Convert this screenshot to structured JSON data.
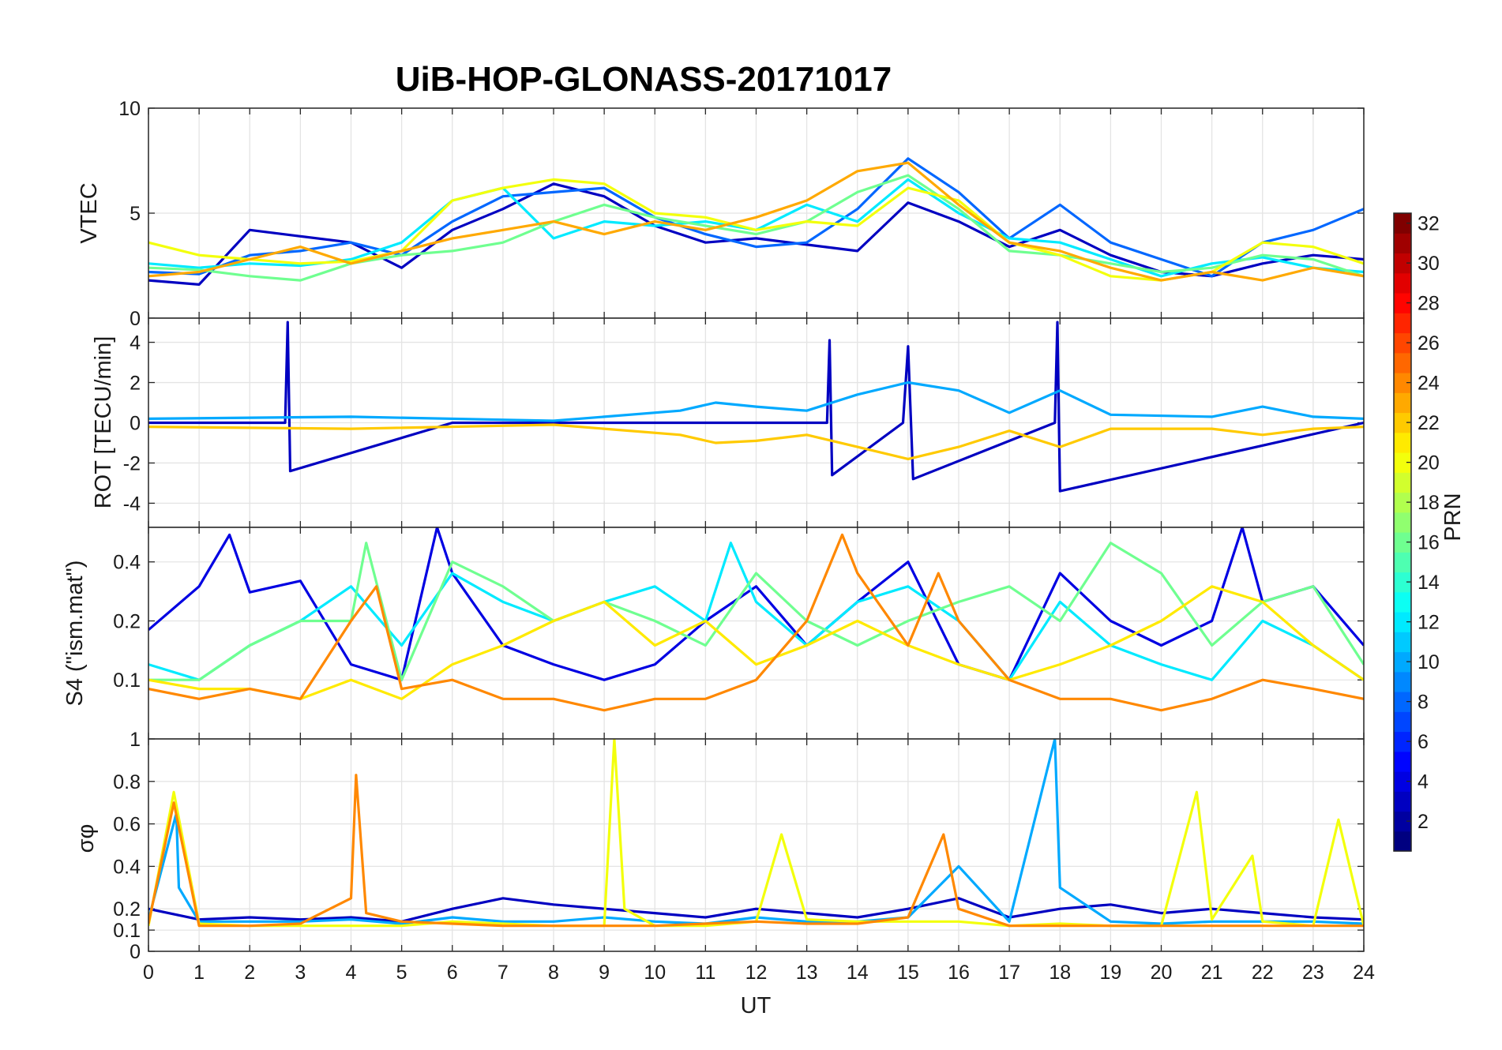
{
  "figure": {
    "title": "UiB-HOP-GLONASS-20171017",
    "xlabel": "UT"
  },
  "colorbar": {
    "label": "PRN",
    "ticks": [
      "2",
      "4",
      "6",
      "8",
      "10",
      "12",
      "14",
      "16",
      "18",
      "20",
      "22",
      "24",
      "26",
      "28",
      "30",
      "32"
    ],
    "range": [
      1,
      32
    ],
    "colormap": "jet"
  },
  "chart_data": [
    {
      "type": "line",
      "name": "VTEC",
      "ylabel": "VTEC",
      "x_range": [
        0,
        24
      ],
      "ylim": [
        0,
        10
      ],
      "yticks": [
        "0",
        "5",
        "10"
      ],
      "xticks": [
        "0",
        "1",
        "2",
        "3",
        "4",
        "5",
        "6",
        "7",
        "8",
        "9",
        "10",
        "11",
        "12",
        "13",
        "14",
        "15",
        "16",
        "17",
        "18",
        "19",
        "20",
        "21",
        "22",
        "23",
        "24"
      ],
      "grid": true,
      "series": [
        {
          "prn": 3,
          "x": [
            0,
            1,
            2,
            3,
            4,
            5,
            6,
            7,
            8,
            9,
            10,
            11,
            12,
            13,
            14,
            15,
            16,
            17,
            18,
            19,
            20,
            21,
            22,
            23,
            24
          ],
          "values": [
            1.8,
            1.6,
            4.2,
            3.9,
            3.6,
            2.4,
            4.2,
            5.2,
            6.4,
            5.8,
            4.4,
            3.6,
            3.8,
            3.5,
            3.2,
            5.5,
            4.6,
            3.4,
            4.2,
            3.0,
            2.2,
            2.0,
            2.6,
            3.0,
            2.8
          ]
        },
        {
          "prn": 8,
          "x": [
            0,
            1,
            2,
            3,
            4,
            5,
            6,
            7,
            8,
            9,
            10,
            11,
            12,
            13,
            14,
            15,
            16,
            17,
            18,
            19,
            20,
            21,
            22,
            23,
            24
          ],
          "values": [
            2.2,
            2.1,
            3.0,
            3.2,
            3.6,
            3.0,
            4.6,
            5.8,
            6.0,
            6.2,
            4.8,
            4.0,
            3.4,
            3.6,
            5.2,
            7.6,
            6.0,
            3.8,
            5.4,
            3.6,
            2.8,
            2.0,
            3.6,
            4.2,
            5.2
          ]
        },
        {
          "prn": 12,
          "x": [
            0,
            1,
            2,
            3,
            4,
            5,
            6,
            7,
            8,
            9,
            10,
            11,
            12,
            13,
            14,
            15,
            16,
            17,
            18,
            19,
            20,
            21,
            22,
            23,
            24
          ],
          "values": [
            2.6,
            2.4,
            2.6,
            2.5,
            2.8,
            3.6,
            5.6,
            6.2,
            3.8,
            4.6,
            4.4,
            4.6,
            4.2,
            5.4,
            4.6,
            6.6,
            5.0,
            3.8,
            3.6,
            2.8,
            2.0,
            2.6,
            2.9,
            2.4,
            2.2
          ]
        },
        {
          "prn": 16,
          "x": [
            0,
            1,
            2,
            3,
            4,
            5,
            6,
            7,
            8,
            9,
            10,
            11,
            12,
            13,
            14,
            15,
            16,
            17,
            18,
            19,
            20,
            21,
            22,
            23,
            24
          ],
          "values": [
            2.4,
            2.3,
            2.0,
            1.8,
            2.6,
            3.0,
            3.2,
            3.6,
            4.6,
            5.4,
            4.8,
            4.4,
            4.0,
            4.6,
            6.0,
            6.8,
            5.2,
            3.2,
            3.0,
            2.6,
            2.2,
            2.4,
            3.0,
            2.8,
            2.0
          ]
        },
        {
          "prn": 20,
          "x": [
            0,
            1,
            2,
            3,
            4,
            5,
            6,
            7,
            8,
            9,
            10,
            11,
            12,
            13,
            14,
            15,
            16,
            17,
            18,
            19,
            20,
            21,
            22,
            23,
            24
          ],
          "values": [
            3.6,
            3.0,
            2.8,
            2.6,
            2.7,
            3.2,
            5.6,
            6.2,
            6.6,
            6.4,
            5.0,
            4.8,
            4.2,
            4.6,
            4.4,
            6.2,
            5.6,
            3.6,
            3.0,
            2.0,
            1.8,
            2.2,
            3.6,
            3.4,
            2.6
          ]
        },
        {
          "prn": 23,
          "x": [
            0,
            1,
            2,
            3,
            4,
            5,
            6,
            7,
            8,
            9,
            10,
            11,
            12,
            13,
            14,
            15,
            16,
            17,
            18,
            19,
            20,
            21,
            22,
            23,
            24
          ],
          "values": [
            2.0,
            2.2,
            2.8,
            3.4,
            2.6,
            3.2,
            3.8,
            4.2,
            4.6,
            4.0,
            4.6,
            4.2,
            4.8,
            5.6,
            7.0,
            7.4,
            5.4,
            3.6,
            3.2,
            2.4,
            1.8,
            2.2,
            1.8,
            2.4,
            2.0
          ]
        }
      ]
    },
    {
      "type": "line",
      "name": "ROT",
      "ylabel": "ROT [TECU/min]",
      "x_range": [
        0,
        24
      ],
      "ylim": [
        -5.2,
        5.2
      ],
      "yticks": [
        "-4",
        "-2",
        "0",
        "2",
        "4"
      ],
      "xticks": [
        "0",
        "1",
        "2",
        "3",
        "4",
        "5",
        "6",
        "7",
        "8",
        "9",
        "10",
        "11",
        "12",
        "13",
        "14",
        "15",
        "16",
        "17",
        "18",
        "19",
        "20",
        "21",
        "22",
        "23",
        "24"
      ],
      "grid": true,
      "series": [
        {
          "prn": 3,
          "x": [
            0,
            2.7,
            2.75,
            2.8,
            6,
            10,
            13.4,
            13.45,
            13.5,
            14.9,
            15,
            15.1,
            17.9,
            17.95,
            18,
            24
          ],
          "values": [
            0,
            0,
            5.0,
            -2.4,
            0,
            0,
            0,
            4.1,
            -2.6,
            0,
            3.8,
            -2.8,
            0,
            5.0,
            -3.4,
            0
          ]
        },
        {
          "prn": 10,
          "x": [
            0,
            4,
            8,
            10.5,
            11.2,
            12,
            13,
            14,
            15,
            16,
            17,
            18,
            19,
            21,
            22,
            23,
            24
          ],
          "values": [
            0.2,
            0.3,
            0.1,
            0.6,
            1.0,
            0.8,
            0.6,
            1.4,
            2.0,
            1.6,
            0.5,
            1.6,
            0.4,
            0.3,
            0.8,
            0.3,
            0.2
          ]
        },
        {
          "prn": 22,
          "x": [
            0,
            4,
            8,
            10.5,
            11.2,
            12,
            13,
            14,
            15,
            16,
            17,
            18,
            19,
            21,
            22,
            23,
            24
          ],
          "values": [
            -0.2,
            -0.3,
            -0.1,
            -0.6,
            -1.0,
            -0.9,
            -0.6,
            -1.2,
            -1.8,
            -1.2,
            -0.4,
            -1.2,
            -0.3,
            -0.3,
            -0.6,
            -0.3,
            -0.2
          ]
        }
      ]
    },
    {
      "type": "line",
      "name": "S4",
      "ylabel": "S4 (\"ism.mat\")",
      "x_range": [
        0,
        24
      ],
      "ylim": [
        0.05,
        0.6
      ],
      "yscale": "log",
      "yticks": [
        "0.1",
        "0.2",
        "0.4"
      ],
      "xticks": [
        "0",
        "1",
        "2",
        "3",
        "4",
        "5",
        "6",
        "7",
        "8",
        "9",
        "10",
        "11",
        "12",
        "13",
        "14",
        "15",
        "16",
        "17",
        "18",
        "19",
        "20",
        "21",
        "22",
        "23",
        "24"
      ],
      "grid": true,
      "series": [
        {
          "prn": 4,
          "x": [
            0,
            1,
            1.6,
            2,
            3,
            4,
            5,
            5.7,
            6,
            7,
            8,
            9,
            10,
            11,
            12,
            13,
            14,
            15,
            16,
            17,
            18,
            19,
            20,
            21,
            21.6,
            22,
            23,
            24
          ],
          "values": [
            0.18,
            0.3,
            0.55,
            0.28,
            0.32,
            0.12,
            0.1,
            0.6,
            0.35,
            0.15,
            0.12,
            0.1,
            0.12,
            0.2,
            0.3,
            0.15,
            0.25,
            0.4,
            0.12,
            0.1,
            0.35,
            0.2,
            0.15,
            0.2,
            0.6,
            0.25,
            0.3,
            0.15
          ]
        },
        {
          "prn": 12,
          "x": [
            0,
            1,
            2,
            3,
            4,
            5,
            6,
            7,
            8,
            9,
            10,
            11,
            11.5,
            12,
            13,
            14,
            15,
            16,
            17,
            18,
            19,
            20,
            21,
            22,
            23,
            24
          ],
          "values": [
            0.12,
            0.1,
            0.15,
            0.2,
            0.3,
            0.15,
            0.35,
            0.25,
            0.2,
            0.25,
            0.3,
            0.2,
            0.5,
            0.25,
            0.15,
            0.25,
            0.3,
            0.2,
            0.1,
            0.25,
            0.15,
            0.12,
            0.1,
            0.2,
            0.15,
            0.1
          ]
        },
        {
          "prn": 16,
          "x": [
            0,
            1,
            2,
            3,
            4,
            4.3,
            5,
            6,
            7,
            8,
            9,
            10,
            11,
            12,
            13,
            14,
            15,
            16,
            17,
            18,
            19,
            20,
            21,
            22,
            23,
            24
          ],
          "values": [
            0.1,
            0.1,
            0.15,
            0.2,
            0.2,
            0.5,
            0.1,
            0.4,
            0.3,
            0.2,
            0.25,
            0.2,
            0.15,
            0.35,
            0.2,
            0.15,
            0.2,
            0.25,
            0.3,
            0.2,
            0.5,
            0.35,
            0.15,
            0.25,
            0.3,
            0.12
          ]
        },
        {
          "prn": 21,
          "x": [
            0,
            1,
            2,
            3,
            4,
            5,
            6,
            7,
            8,
            9,
            10,
            11,
            12,
            13,
            14,
            15,
            16,
            17,
            18,
            19,
            20,
            21,
            22,
            23,
            24
          ],
          "values": [
            0.1,
            0.09,
            0.09,
            0.08,
            0.1,
            0.08,
            0.12,
            0.15,
            0.2,
            0.25,
            0.15,
            0.2,
            0.12,
            0.15,
            0.2,
            0.15,
            0.12,
            0.1,
            0.12,
            0.15,
            0.2,
            0.3,
            0.25,
            0.15,
            0.1
          ]
        },
        {
          "prn": 24,
          "x": [
            0,
            1,
            2,
            3,
            4,
            4.5,
            5,
            6,
            7,
            8,
            9,
            10,
            11,
            12,
            13,
            13.7,
            14,
            15,
            15.6,
            16,
            17,
            18,
            19,
            20,
            21,
            22,
            23,
            24
          ],
          "values": [
            0.09,
            0.08,
            0.09,
            0.08,
            0.2,
            0.3,
            0.09,
            0.1,
            0.08,
            0.08,
            0.07,
            0.08,
            0.08,
            0.1,
            0.2,
            0.55,
            0.35,
            0.15,
            0.35,
            0.2,
            0.1,
            0.08,
            0.08,
            0.07,
            0.08,
            0.1,
            0.09,
            0.08
          ]
        }
      ]
    },
    {
      "type": "line",
      "name": "sigma_phi",
      "ylabel": "σφ",
      "x_range": [
        0,
        24
      ],
      "ylim": [
        0,
        1
      ],
      "yticks": [
        "0",
        "0.1",
        "0.2",
        "0.4",
        "0.6",
        "0.8",
        "1"
      ],
      "xticks": [
        "0",
        "1",
        "2",
        "3",
        "4",
        "5",
        "6",
        "7",
        "8",
        "9",
        "10",
        "11",
        "12",
        "13",
        "14",
        "15",
        "16",
        "17",
        "18",
        "19",
        "20",
        "21",
        "22",
        "23",
        "24"
      ],
      "grid": true,
      "series": [
        {
          "prn": 3,
          "x": [
            0,
            1,
            2,
            3,
            4,
            5,
            6,
            7,
            8,
            9,
            10,
            11,
            12,
            13,
            14,
            15,
            16,
            17,
            18,
            19,
            20,
            21,
            22,
            23,
            24
          ],
          "values": [
            0.2,
            0.15,
            0.16,
            0.15,
            0.16,
            0.14,
            0.2,
            0.25,
            0.22,
            0.2,
            0.18,
            0.16,
            0.2,
            0.18,
            0.16,
            0.2,
            0.25,
            0.16,
            0.2,
            0.22,
            0.18,
            0.2,
            0.18,
            0.16,
            0.15
          ]
        },
        {
          "prn": 10,
          "x": [
            0,
            0.55,
            0.6,
            1,
            2,
            3,
            4,
            5,
            6,
            7,
            8,
            9,
            10,
            11,
            12,
            13,
            14,
            15,
            16,
            17,
            17.9,
            18,
            19,
            20,
            21,
            22,
            23,
            24
          ],
          "values": [
            0.15,
            0.65,
            0.3,
            0.14,
            0.14,
            0.14,
            0.15,
            0.13,
            0.16,
            0.14,
            0.14,
            0.16,
            0.14,
            0.13,
            0.16,
            0.14,
            0.14,
            0.16,
            0.4,
            0.14,
            1.0,
            0.3,
            0.14,
            0.13,
            0.14,
            0.14,
            0.14,
            0.13
          ]
        },
        {
          "prn": 20,
          "x": [
            0,
            0.5,
            1,
            2,
            3,
            4,
            5,
            6,
            7,
            8,
            9,
            9.2,
            9.4,
            10,
            11,
            12,
            12.5,
            13,
            14,
            15,
            16,
            17,
            18,
            19,
            20,
            20.7,
            21,
            21.8,
            22,
            23,
            23.5,
            24
          ],
          "values": [
            0.12,
            0.75,
            0.13,
            0.12,
            0.12,
            0.12,
            0.12,
            0.14,
            0.13,
            0.12,
            0.12,
            1.0,
            0.2,
            0.12,
            0.12,
            0.14,
            0.55,
            0.15,
            0.14,
            0.14,
            0.14,
            0.12,
            0.13,
            0.12,
            0.12,
            0.75,
            0.15,
            0.45,
            0.14,
            0.12,
            0.62,
            0.12
          ]
        },
        {
          "prn": 24,
          "x": [
            0,
            0.5,
            1,
            2,
            3,
            4,
            4.1,
            4.3,
            5,
            6,
            7,
            8,
            9,
            10,
            11,
            12,
            13,
            14,
            15,
            15.7,
            16,
            17,
            18,
            19,
            20,
            21,
            22,
            23,
            24
          ],
          "values": [
            0.13,
            0.7,
            0.12,
            0.12,
            0.13,
            0.25,
            0.83,
            0.18,
            0.14,
            0.13,
            0.12,
            0.12,
            0.12,
            0.12,
            0.13,
            0.14,
            0.13,
            0.13,
            0.16,
            0.55,
            0.2,
            0.12,
            0.12,
            0.12,
            0.12,
            0.12,
            0.12,
            0.12,
            0.12
          ]
        }
      ]
    }
  ]
}
